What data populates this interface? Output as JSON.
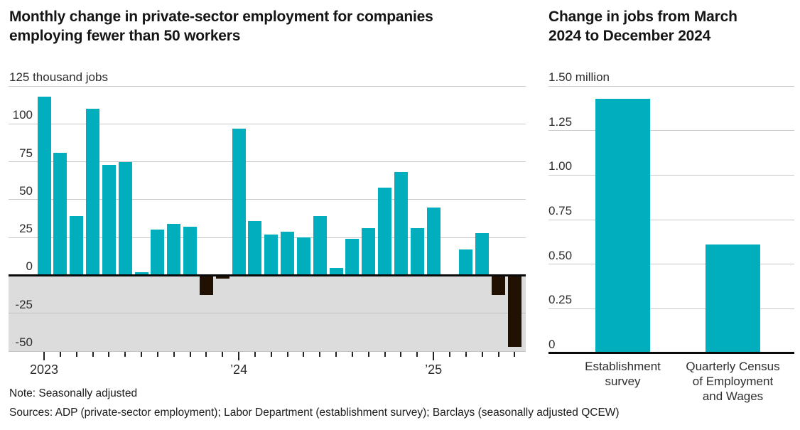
{
  "chart_data": [
    {
      "type": "bar",
      "title": "Monthly change in private-sector employment for companies\nemploying fewer than 50 workers",
      "unit_label": "125 thousand jobs",
      "ylabel": "thousand jobs",
      "ylim": [
        -50,
        125
      ],
      "grid": true,
      "legend_position": "none",
      "y_ticks": [
        125,
        100,
        75,
        50,
        25,
        0,
        -25,
        -50
      ],
      "y_tick_labels": [
        "125 thousand jobs",
        "100",
        "75",
        "50",
        "25",
        "0",
        "-25",
        "-50"
      ],
      "x_year_labels": [
        "2023",
        "’24",
        "’25"
      ],
      "x": [
        "2023-01",
        "2023-02",
        "2023-03",
        "2023-04",
        "2023-05",
        "2023-06",
        "2023-07",
        "2023-08",
        "2023-09",
        "2023-10",
        "2023-11",
        "2023-12",
        "2024-01",
        "2024-02",
        "2024-03",
        "2024-04",
        "2024-05",
        "2024-06",
        "2024-07",
        "2024-08",
        "2024-09",
        "2024-10",
        "2024-11",
        "2024-12",
        "2025-01",
        "2025-02",
        "2025-03",
        "2025-04",
        "2025-05",
        "2025-06"
      ],
      "values": [
        118,
        81,
        39,
        110,
        73,
        75,
        2,
        30,
        34,
        32,
        -13,
        -2,
        97,
        36,
        27,
        29,
        25,
        39,
        5,
        24,
        31,
        58,
        68,
        31,
        45,
        0,
        17,
        28,
        -13,
        -47
      ],
      "colors": {
        "positive": "#00aebd",
        "negative": "#201103",
        "negative_band": "#dcdcdc",
        "gridline": "#c8c8c8",
        "zero_line": "#0a0a0a"
      }
    },
    {
      "type": "bar",
      "title": "Change in jobs from March\n2024 to December 2024",
      "unit_label": "1.50 million",
      "ylabel": "million jobs",
      "ylim": [
        0,
        1.5
      ],
      "grid": true,
      "legend_position": "none",
      "y_ticks": [
        1.5,
        1.25,
        1.0,
        0.75,
        0.5,
        0.25,
        0
      ],
      "y_tick_labels": [
        "1.50 million",
        "1.25",
        "1.00",
        "0.75",
        "0.50",
        "0.25",
        "0"
      ],
      "categories": [
        "Establishment survey",
        "Quarterly Census of Employment and Wages"
      ],
      "category_label_lines": [
        [
          "Establishment",
          "survey"
        ],
        [
          "Quarterly Census",
          "of Employment",
          "and Wages"
        ]
      ],
      "values": [
        1.43,
        0.61
      ],
      "colors": {
        "positive": "#00aebd",
        "gridline": "#c8c8c8",
        "zero_line": "#0a0a0a"
      }
    }
  ],
  "footer": {
    "note": "Note: Seasonally adjusted",
    "sources": "Sources: ADP (private-sector employment); Labor Department (establishment survey); Barclays (seasonally adjusted QCEW)"
  }
}
